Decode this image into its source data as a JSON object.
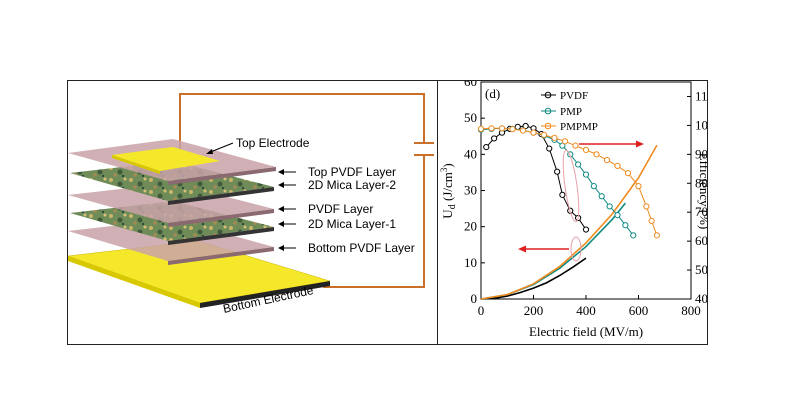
{
  "schematic": {
    "labels": {
      "top_electrode": "Top Electrode",
      "top_pvdf": "Top PVDF Layer",
      "mica2": "2D Mica Layer-2",
      "pvdf": "PVDF Layer",
      "mica1": "2D Mica Layer-1",
      "bottom_pvdf": "Bottom PVDF Layer",
      "bottom_electrode": "Bottom Electrode"
    },
    "colors": {
      "electrode": "#f5e82a",
      "pvdf": "#c9a2a8",
      "mica": "#6c8a58",
      "wire": "#c8702a"
    }
  },
  "chart_data": {
    "type": "line",
    "panel_label": "(d)",
    "xlabel": "Electric field (MV/m)",
    "ylabel": "U_d (J/cm^3)",
    "ylabel_main": "U",
    "ylabel_sub": "d",
    "ylabel_unit": " (J/cm",
    "ylabel_sup": "3",
    "ylabel_close": ")",
    "y2label": "Efficiency (%)",
    "xlim": [
      0,
      800
    ],
    "ylim": [
      0,
      60
    ],
    "y2lim": [
      40,
      115
    ],
    "xticks": [
      0,
      200,
      400,
      600,
      800
    ],
    "yticks": [
      0,
      10,
      20,
      30,
      40,
      50,
      60
    ],
    "y2ticks": [
      40,
      50,
      60,
      70,
      80,
      90,
      100,
      110
    ],
    "series_colors": {
      "PVDF": "#000000",
      "PMP": "#0f8a80",
      "PMPMP": "#f08a1e"
    },
    "legend": [
      "PVDF",
      "PMP",
      "PMPMP"
    ],
    "energy_density": [
      {
        "name": "PVDF",
        "x": [
          0,
          50,
          100,
          150,
          200,
          250,
          300,
          350,
          400
        ],
        "y": [
          0,
          0.2,
          0.8,
          1.8,
          3.0,
          4.5,
          6.5,
          8.8,
          11.3
        ]
      },
      {
        "name": "PMP",
        "x": [
          0,
          100,
          200,
          300,
          400,
          500,
          550
        ],
        "y": [
          0,
          1.2,
          4.0,
          8.5,
          14.5,
          22.0,
          26.5
        ]
      },
      {
        "name": "PMPMP",
        "x": [
          0,
          100,
          200,
          300,
          400,
          500,
          600,
          670
        ],
        "y": [
          0,
          1.2,
          4.2,
          9.0,
          15.5,
          23.5,
          33.5,
          42.5
        ]
      }
    ],
    "efficiency": [
      {
        "name": "PVDF",
        "x": [
          20,
          50,
          80,
          110,
          140,
          170,
          200,
          230,
          260,
          290,
          310,
          340,
          370,
          400
        ],
        "y": [
          92.5,
          95.5,
          97.5,
          98.8,
          99.5,
          99.8,
          99.0,
          97.0,
          92.0,
          84.0,
          76.0,
          70.5,
          68.0,
          64.0
        ]
      },
      {
        "name": "PMP",
        "x": [
          0,
          40,
          80,
          120,
          160,
          200,
          240,
          280,
          310,
          340,
          370,
          400,
          430,
          460,
          490,
          520,
          550,
          580
        ],
        "y": [
          98.5,
          98.8,
          99.0,
          98.8,
          98.3,
          97.5,
          96.5,
          95.0,
          93.0,
          90.0,
          86.5,
          83.0,
          79.0,
          75.5,
          72.0,
          69.0,
          65.5,
          62.0
        ]
      },
      {
        "name": "PMPMP",
        "x": [
          0,
          40,
          80,
          120,
          160,
          200,
          240,
          280,
          320,
          360,
          400,
          440,
          480,
          520,
          560,
          600,
          630,
          650,
          670
        ],
        "y": [
          98.8,
          99.0,
          99.0,
          98.7,
          98.2,
          97.5,
          96.7,
          95.7,
          94.5,
          93.0,
          91.5,
          90.0,
          88.0,
          86.0,
          83.5,
          79.0,
          72.0,
          67.0,
          62.0
        ]
      }
    ]
  }
}
